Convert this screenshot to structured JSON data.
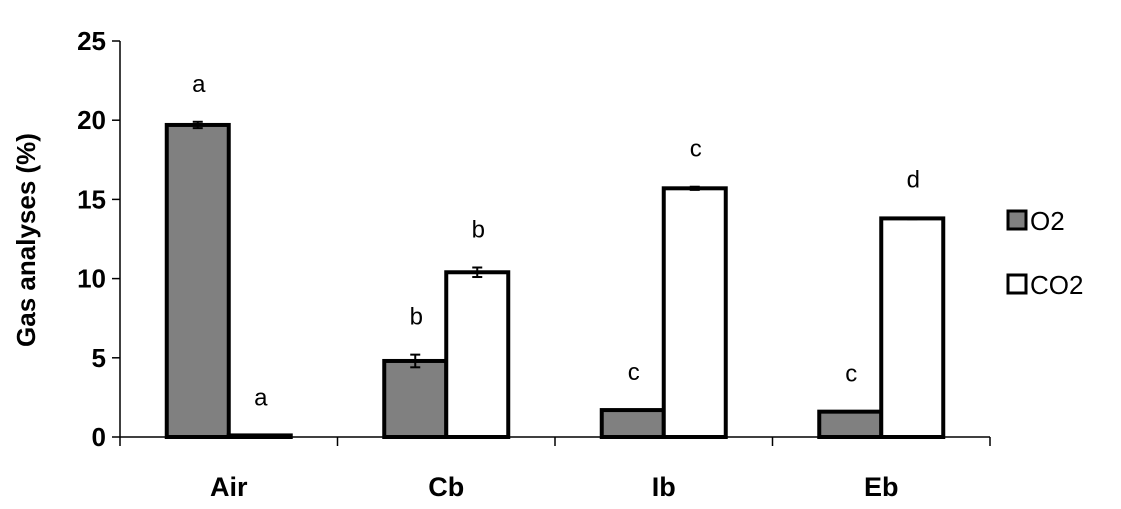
{
  "chart_data": {
    "type": "bar",
    "title": "",
    "xlabel": "",
    "ylabel": "Gas analyses (%)",
    "ylim": [
      0,
      25
    ],
    "yticks": [
      0,
      5,
      10,
      15,
      20,
      25
    ],
    "categories": [
      "Air",
      "Cb",
      "Ib",
      "Eb"
    ],
    "series": [
      {
        "name": "O2",
        "color": "#808080",
        "values": [
          19.7,
          4.8,
          1.7,
          1.6
        ],
        "errors": [
          0.2,
          0.4,
          0,
          0
        ],
        "significance": [
          "a",
          "b",
          "c",
          "c"
        ]
      },
      {
        "name": "CO2",
        "color": "#ffffff",
        "values": [
          0.1,
          10.4,
          15.7,
          13.8
        ],
        "errors": [
          0,
          0.3,
          0.1,
          0.05
        ],
        "significance": [
          "a",
          "b",
          "c",
          "d"
        ]
      }
    ],
    "legend": "right",
    "grid": false
  }
}
